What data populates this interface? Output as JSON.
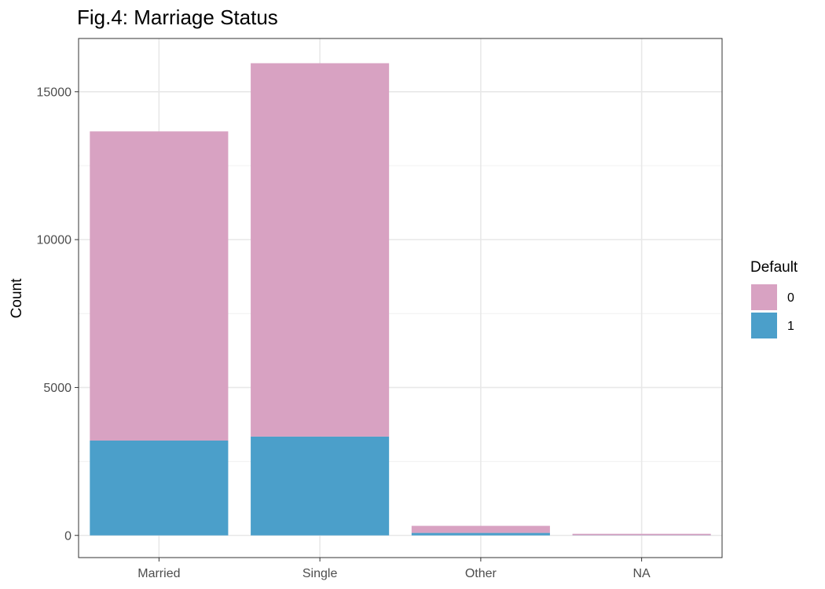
{
  "chart_data": {
    "type": "bar",
    "stacked": true,
    "title": "Fig.4: Marriage Status",
    "xlabel": "",
    "ylabel": "Count",
    "categories": [
      "Married",
      "Single",
      "Other",
      "NA"
    ],
    "series": [
      {
        "name": "1",
        "color": "#4b9fca",
        "values": [
          3206,
          3341,
          84,
          5
        ]
      },
      {
        "name": "0",
        "color": "#d8a2c2",
        "values": [
          10453,
          12623,
          239,
          49
        ]
      }
    ],
    "yticks": [
      0,
      5000,
      10000,
      15000
    ],
    "ytick_labels": [
      "0",
      "5000",
      "10000",
      "15000"
    ],
    "ylim": [
      -750,
      16800
    ],
    "grid": true,
    "legend": {
      "title": "Default",
      "position": "right",
      "items": [
        {
          "label": "0",
          "color": "#d8a2c2"
        },
        {
          "label": "1",
          "color": "#4b9fca"
        }
      ]
    }
  }
}
